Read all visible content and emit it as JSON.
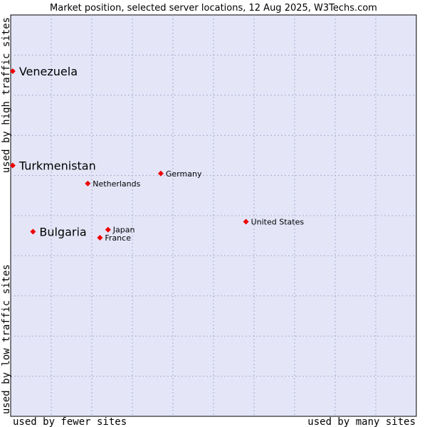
{
  "chart_data": {
    "type": "scatter",
    "title": "Market position, selected server locations, 12 Aug 2025, W3Techs.com",
    "xlabel_low": "used by fewer sites",
    "xlabel_high": "used by many sites",
    "ylabel_low": "used by low traffic sites",
    "ylabel_high": "used by high traffic sites",
    "xlim": [
      0,
      10
    ],
    "ylim": [
      0,
      10
    ],
    "grid": true,
    "points": [
      {
        "name": "Venezuela",
        "x": 0.05,
        "y": 8.6,
        "highlight": true
      },
      {
        "name": "Turkmenistan",
        "x": 0.05,
        "y": 6.25,
        "highlight": true
      },
      {
        "name": "Bulgaria",
        "x": 0.55,
        "y": 4.6,
        "highlight": true
      },
      {
        "name": "Netherlands",
        "x": 1.9,
        "y": 5.8,
        "highlight": false
      },
      {
        "name": "Germany",
        "x": 3.7,
        "y": 6.05,
        "highlight": false
      },
      {
        "name": "Japan",
        "x": 2.4,
        "y": 4.65,
        "highlight": false
      },
      {
        "name": "France",
        "x": 2.2,
        "y": 4.45,
        "highlight": false
      },
      {
        "name": "United States",
        "x": 5.8,
        "y": 4.85,
        "highlight": false
      }
    ]
  },
  "colors": {
    "plot_bg": "#e4e6f8",
    "grid": "#aaaacc",
    "marker": "#ee0000",
    "border": "#000000"
  }
}
